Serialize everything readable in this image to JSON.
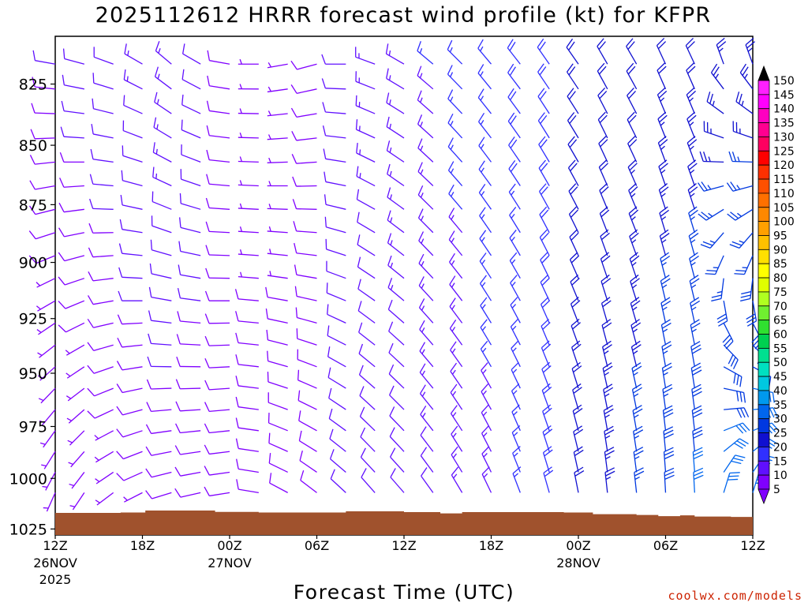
{
  "chart_data": {
    "type": "wind_barb_timeseries",
    "title": "2025112612 HRRR forecast wind profile (kt) for KFPR",
    "xlabel": "Forecast Time (UTC)",
    "ylabel": "",
    "x_range_hours": [
      0,
      48
    ],
    "y_range_hpa": [
      1028,
      806
    ],
    "y_ticks": [
      825,
      850,
      875,
      900,
      925,
      950,
      975,
      1000,
      1025
    ],
    "x_ticks": [
      {
        "hour": 0,
        "label": "12Z",
        "date": "26NOV",
        "year": "2025"
      },
      {
        "hour": 6,
        "label": "18Z"
      },
      {
        "hour": 12,
        "label": "00Z",
        "date": "27NOV"
      },
      {
        "hour": 18,
        "label": "06Z"
      },
      {
        "hour": 24,
        "label": "12Z"
      },
      {
        "hour": 30,
        "label": "18Z"
      },
      {
        "hour": 36,
        "label": "00Z",
        "date": "28NOV"
      },
      {
        "hour": 42,
        "label": "06Z"
      },
      {
        "hour": 48,
        "label": "12Z"
      }
    ],
    "barb_levels_hpa": [
      1017,
      1007,
      997,
      987,
      977,
      967,
      957,
      947,
      937,
      927,
      917,
      907,
      897,
      887,
      877,
      867,
      857,
      847,
      837,
      827,
      817
    ],
    "wind_columns": [
      {
        "hour": 0,
        "dir_bottom": 200,
        "dir_top": 280,
        "spd_bottom": 4,
        "spd_top": 10
      },
      {
        "hour": 2,
        "dir_bottom": 210,
        "dir_top": 285,
        "spd_bottom": 5,
        "spd_top": 11
      },
      {
        "hour": 4,
        "dir_bottom": 230,
        "dir_top": 290,
        "spd_bottom": 6,
        "spd_top": 12
      },
      {
        "hour": 6,
        "dir_bottom": 240,
        "dir_top": 300,
        "spd_bottom": 7,
        "spd_top": 13
      },
      {
        "hour": 8,
        "dir_bottom": 250,
        "dir_top": 310,
        "spd_bottom": 8,
        "spd_top": 14
      },
      {
        "hour": 10,
        "dir_bottom": 255,
        "dir_top": 300,
        "spd_bottom": 8,
        "spd_top": 12
      },
      {
        "hour": 12,
        "dir_bottom": 260,
        "dir_top": 280,
        "spd_bottom": 8,
        "spd_top": 8
      },
      {
        "hour": 14,
        "dir_bottom": 280,
        "dir_top": 270,
        "spd_bottom": 9,
        "spd_top": 6
      },
      {
        "hour": 16,
        "dir_bottom": 300,
        "dir_top": 260,
        "spd_bottom": 9,
        "spd_top": 6
      },
      {
        "hour": 18,
        "dir_bottom": 310,
        "dir_top": 255,
        "spd_bottom": 10,
        "spd_top": 8
      },
      {
        "hour": 20,
        "dir_bottom": 315,
        "dir_top": 270,
        "spd_bottom": 10,
        "spd_top": 11
      },
      {
        "hour": 22,
        "dir_bottom": 320,
        "dir_top": 290,
        "spd_bottom": 11,
        "spd_top": 13
      },
      {
        "hour": 24,
        "dir_bottom": 320,
        "dir_top": 300,
        "spd_bottom": 11,
        "spd_top": 14
      },
      {
        "hour": 26,
        "dir_bottom": 325,
        "dir_top": 310,
        "spd_bottom": 12,
        "spd_top": 15
      },
      {
        "hour": 28,
        "dir_bottom": 330,
        "dir_top": 315,
        "spd_bottom": 13,
        "spd_top": 16
      },
      {
        "hour": 30,
        "dir_bottom": 335,
        "dir_top": 320,
        "spd_bottom": 14,
        "spd_top": 17
      },
      {
        "hour": 32,
        "dir_bottom": 340,
        "dir_top": 322,
        "spd_bottom": 16,
        "spd_top": 18
      },
      {
        "hour": 34,
        "dir_bottom": 345,
        "dir_top": 325,
        "spd_bottom": 18,
        "spd_top": 19
      },
      {
        "hour": 36,
        "dir_bottom": 350,
        "dir_top": 325,
        "spd_bottom": 21,
        "spd_top": 20
      },
      {
        "hour": 38,
        "dir_bottom": 355,
        "dir_top": 330,
        "spd_bottom": 24,
        "spd_top": 20
      },
      {
        "hour": 40,
        "dir_bottom": 355,
        "dir_top": 330,
        "spd_bottom": 27,
        "spd_top": 21
      },
      {
        "hour": 42,
        "dir_bottom": 358,
        "dir_top": 335,
        "spd_bottom": 29,
        "spd_top": 22
      },
      {
        "hour": 44,
        "dir_bottom": 358,
        "dir_top": 335,
        "spd_bottom": 31,
        "spd_top": 22
      },
      {
        "hour": 46,
        "dir_bottom": 0,
        "dir_top": 340,
        "spd_bottom": 32,
        "spd_top": 23
      },
      {
        "hour": 48,
        "dir_bottom": 0,
        "dir_top": 340,
        "spd_bottom": 33,
        "spd_top": 23
      }
    ],
    "surface_pressure": [
      {
        "hour": 0,
        "hpa": 1017
      },
      {
        "hour": 4.5,
        "hpa": 1016.8
      },
      {
        "hour": 6.2,
        "hpa": 1015.8
      },
      {
        "hour": 9,
        "hpa": 1015.8
      },
      {
        "hour": 11,
        "hpa": 1016.5
      },
      {
        "hour": 14,
        "hpa": 1016.8
      },
      {
        "hour": 20,
        "hpa": 1016.2
      },
      {
        "hour": 24,
        "hpa": 1016.6
      },
      {
        "hour": 26.5,
        "hpa": 1017.2
      },
      {
        "hour": 28,
        "hpa": 1016.6
      },
      {
        "hour": 35,
        "hpa": 1016.8
      },
      {
        "hour": 37,
        "hpa": 1017.6
      },
      {
        "hour": 40,
        "hpa": 1018.0
      },
      {
        "hour": 41.5,
        "hpa": 1018.6
      },
      {
        "hour": 43,
        "hpa": 1018.2
      },
      {
        "hour": 44,
        "hpa": 1018.8
      },
      {
        "hour": 46.5,
        "hpa": 1019.0
      },
      {
        "hour": 48,
        "hpa": 1019.0
      }
    ],
    "surface_color": "#a0522d",
    "colorbar": {
      "label_values": [
        5,
        10,
        15,
        20,
        25,
        30,
        35,
        40,
        45,
        50,
        55,
        60,
        65,
        70,
        75,
        80,
        85,
        90,
        95,
        100,
        105,
        110,
        115,
        120,
        125,
        130,
        135,
        140,
        145,
        150
      ],
      "colors": [
        "#8000ff",
        "#6010ff",
        "#3030ff",
        "#1010d0",
        "#0038e0",
        "#0066ee",
        "#0099ee",
        "#00c8e0",
        "#00e0c0",
        "#00e090",
        "#00d050",
        "#30e030",
        "#70f030",
        "#b0ff20",
        "#e0ff00",
        "#ffff00",
        "#ffe000",
        "#ffc000",
        "#ffa000",
        "#ff8800",
        "#ff7000",
        "#ff5000",
        "#ff3000",
        "#ff0000",
        "#ff0060",
        "#ff0090",
        "#ff00c0",
        "#ff00ff",
        "#ff20ff",
        "#000000"
      ]
    },
    "credit": "coolwx.com/models"
  }
}
